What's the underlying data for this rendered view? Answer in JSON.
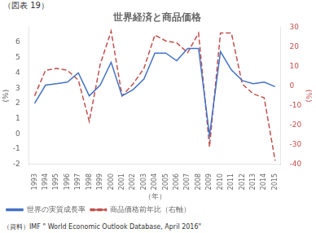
{
  "chart_data": {
    "type": "line",
    "title": "世界経済と商品価格",
    "subtitle": "（図表 19）",
    "annotations": [
      "（資料）IMF \" World Economic Outlook Database, April 2016\""
    ],
    "xlabel": "（年）",
    "ylabel": "(%)",
    "y2label": "(%)",
    "x": [
      1993,
      1994,
      1995,
      1996,
      1997,
      1998,
      1999,
      2000,
      2001,
      2002,
      2003,
      2004,
      2005,
      2006,
      2007,
      2008,
      2009,
      2010,
      2011,
      2012,
      2013,
      2014,
      2015
    ],
    "xlim": [
      1992.5,
      2015.5
    ],
    "xticks": [
      1993,
      1994,
      1995,
      1996,
      1997,
      1998,
      1999,
      2000,
      2001,
      2002,
      2003,
      2004,
      2005,
      2006,
      2007,
      2008,
      2009,
      2010,
      2011,
      2012,
      2013,
      2014,
      2015
    ],
    "series": [
      {
        "name": "世界の実質成長率",
        "color": "#4472c4",
        "line_style": "solid",
        "values": [
          2.0,
          3.2,
          3.3,
          3.4,
          4.0,
          2.5,
          3.2,
          4.7,
          2.5,
          2.9,
          3.6,
          5.3,
          5.3,
          4.8,
          5.6,
          5.6,
          -0.1,
          5.4,
          4.2,
          3.5,
          3.3,
          3.4,
          3.1
        ]
      },
      {
        "name": "商品価格前年比（右軸）",
        "color": "#c0504d",
        "line_style": "dashed",
        "axis": "y2",
        "values": [
          -5.0,
          8.0,
          9.0,
          8.0,
          3.0,
          -18.0,
          11.0,
          28.0,
          -5.0,
          1.0,
          9.0,
          26.0,
          23.0,
          22.0,
          17.0,
          27.0,
          -31.0,
          27.0,
          27.0,
          1.0,
          -4.0,
          -6.0,
          -38.0
        ]
      }
    ],
    "ylim": [
      -2,
      7
    ],
    "yticks": [
      -2,
      -1,
      0,
      1,
      2,
      3,
      4,
      5,
      6
    ],
    "y2lim": [
      -40,
      30
    ],
    "y2ticks": [
      -40,
      -30,
      -20,
      -10,
      0,
      10,
      20,
      30
    ],
    "grid": false,
    "legend": "lower left"
  }
}
